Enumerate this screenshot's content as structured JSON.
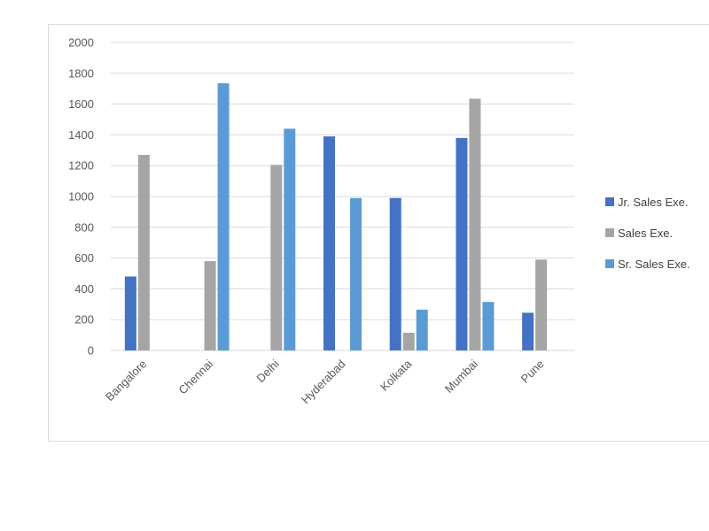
{
  "chart_data": {
    "type": "bar",
    "categories": [
      "Bangalore",
      "Chennai",
      "Delhi",
      "Hyderabad",
      "Kolkata",
      "Mumbai",
      "Pune"
    ],
    "series": [
      {
        "name": "Jr. Sales Exe.",
        "color": "#4472c4",
        "values": [
          480,
          0,
          0,
          1390,
          990,
          1380,
          245
        ]
      },
      {
        "name": "Sales Exe.",
        "color": "#a5a5a5",
        "values": [
          1270,
          580,
          1205,
          0,
          115,
          1635,
          590
        ]
      },
      {
        "name": "Sr. Sales Exe.",
        "color": "#5b9bd5",
        "values": [
          0,
          1735,
          1440,
          990,
          265,
          315,
          0
        ]
      }
    ],
    "ylim": [
      0,
      2000
    ],
    "yticks": [
      0,
      200,
      400,
      600,
      800,
      1000,
      1200,
      1400,
      1600,
      1800,
      2000
    ],
    "grid": true,
    "legend_position": "right",
    "title": "",
    "xlabel": "",
    "ylabel": ""
  }
}
